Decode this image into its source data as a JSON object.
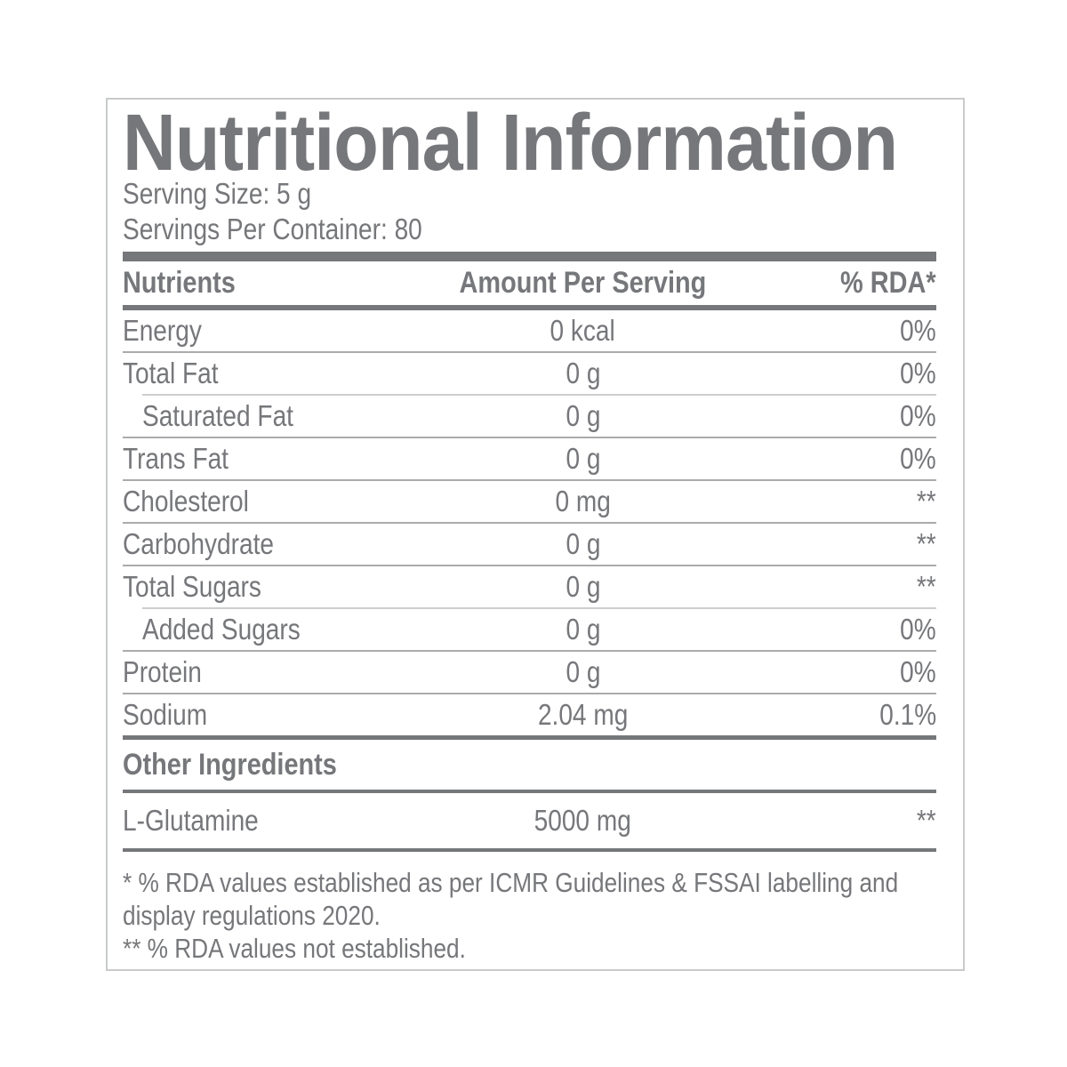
{
  "colors": {
    "text_gray": "#76777a",
    "bar_gray": "#76777a",
    "separator_gray": "#aaabad",
    "separator_light_gray": "#cccdcf",
    "box_border_gray": "#c9cacc"
  },
  "label": {
    "title": "Nutritional Information",
    "serving_size": "Serving Size: 5 g",
    "servings_per_container": "Servings Per Container: 80",
    "table": {
      "headers": {
        "nutrient": "Nutrients",
        "amount": "Amount Per Serving",
        "rda": "% RDA*"
      },
      "rows": [
        {
          "nutrient": "Energy",
          "amount": "0 kcal",
          "rda": "0%"
        },
        {
          "nutrient": "Total Fat",
          "amount": "0 g",
          "rda": "0%"
        },
        {
          "nutrient": "Saturated Fat",
          "amount": "0 g",
          "rda": "0%"
        },
        {
          "nutrient": "Trans Fat",
          "amount": "0 g",
          "rda": "0%"
        },
        {
          "nutrient": "Cholesterol",
          "amount": "0 mg",
          "rda": "**"
        },
        {
          "nutrient": "Carbohydrate",
          "amount": "0 g",
          "rda": "**"
        },
        {
          "nutrient": "Total Sugars",
          "amount": "0 g",
          "rda": "**"
        },
        {
          "nutrient": "Added Sugars",
          "amount": "0 g",
          "rda": "0%"
        },
        {
          "nutrient": "Protein",
          "amount": "0 g",
          "rda": "0%"
        },
        {
          "nutrient": "Sodium",
          "amount": "2.04 mg",
          "rda": "0.1%"
        }
      ]
    },
    "other_ingredients": {
      "heading": "Other Ingredients",
      "rows": [
        {
          "name": "L-Glutamine",
          "amount": "5000 mg",
          "rda": "**"
        }
      ]
    },
    "footnotes": [
      "* % RDA values established as per ICMR Guidelines & FSSAI labelling and display regulations 2020.",
      "** % RDA values not established."
    ]
  }
}
